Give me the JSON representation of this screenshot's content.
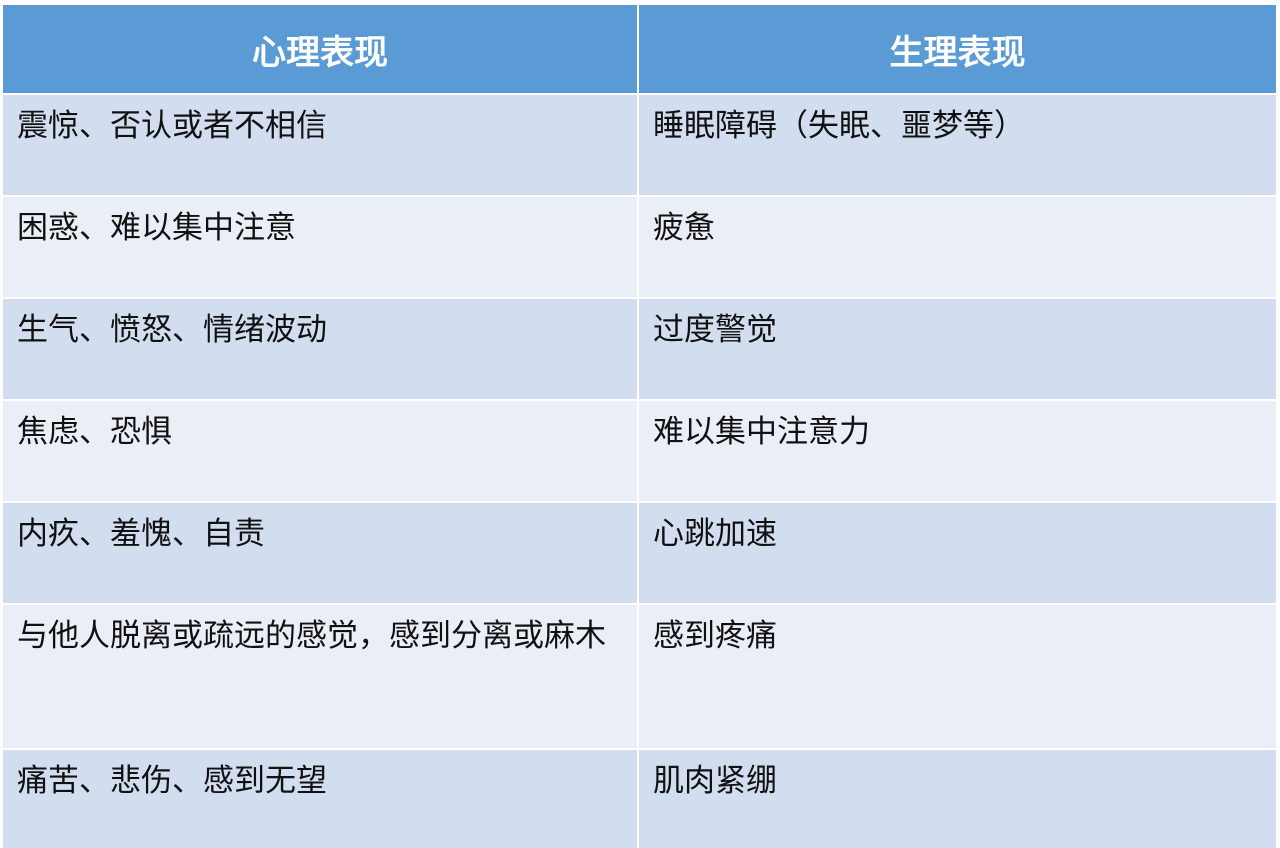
{
  "table": {
    "headers": [
      "心理表现",
      "生理表现"
    ],
    "rows": [
      [
        "震惊、否认或者不相信",
        "睡眠障碍（失眠、噩梦等）"
      ],
      [
        "困惑、难以集中注意",
        "疲惫"
      ],
      [
        "生气、愤怒、情绪波动",
        "过度警觉"
      ],
      [
        "焦虑、恐惧",
        "难以集中注意力"
      ],
      [
        "内疚、羞愧、自责",
        "心跳加速"
      ],
      [
        "与他人脱离或疏远的感觉，感到分离或麻木",
        "感到疼痛"
      ],
      [
        "痛苦、悲伤、感到无望",
        "肌肉紧绷"
      ]
    ]
  },
  "colors": {
    "header": "#5B9BD5",
    "row_dark": "#D2DEEF",
    "row_light": "#EAEFF7"
  }
}
